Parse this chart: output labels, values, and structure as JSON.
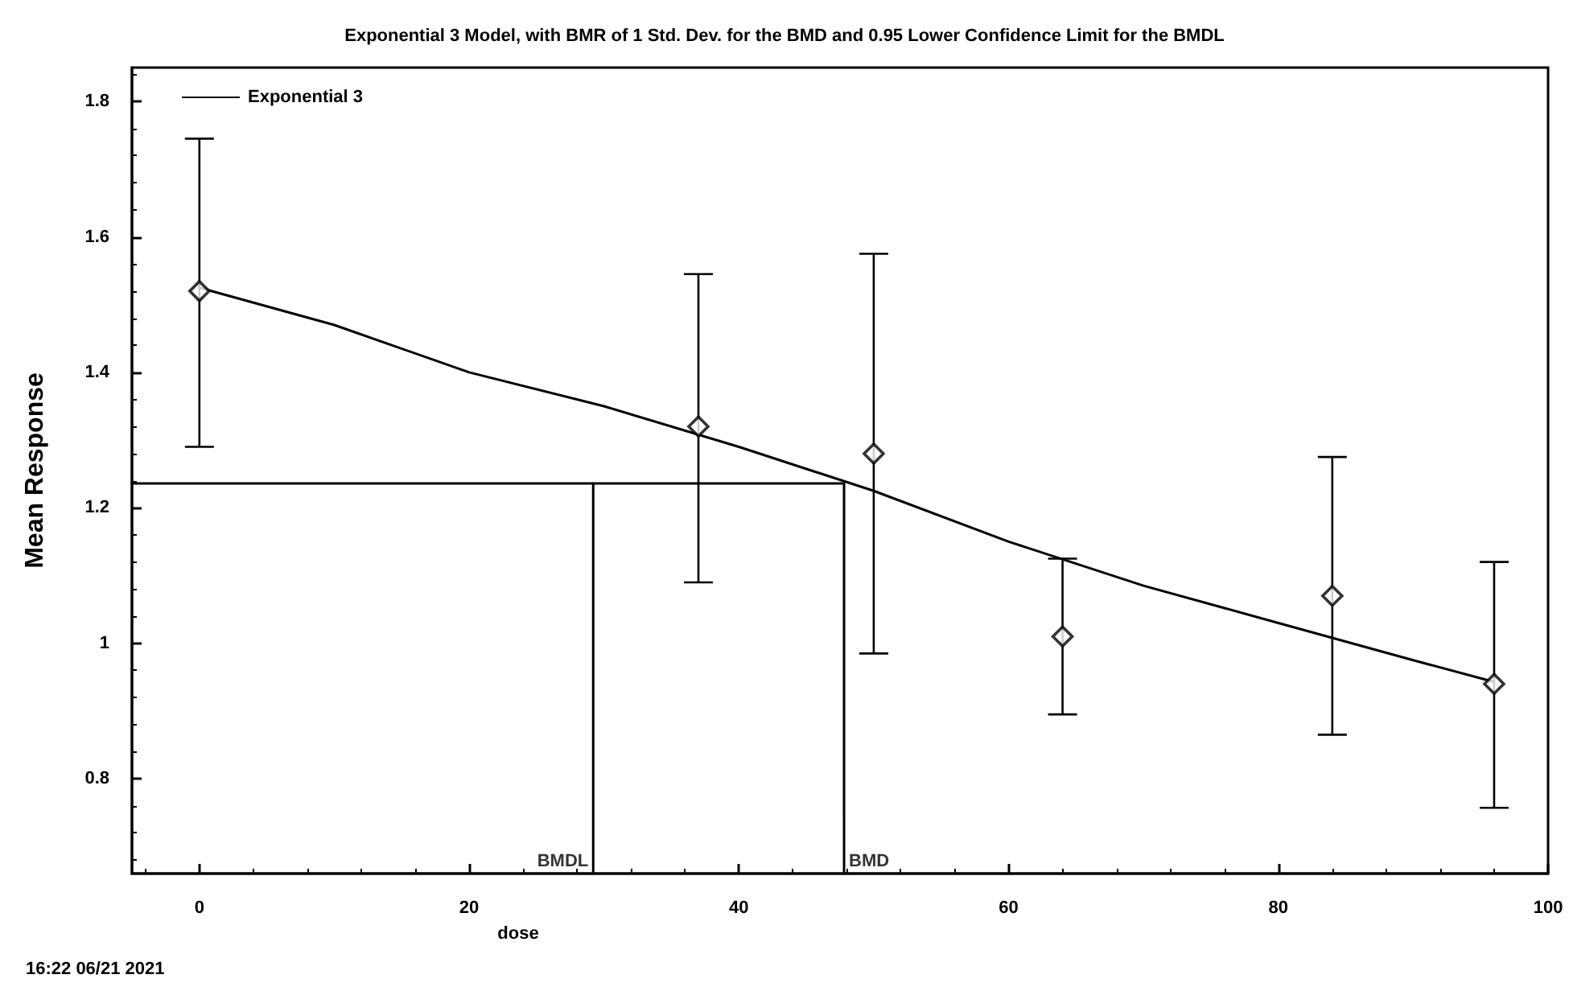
{
  "chart_data": {
    "type": "scatter",
    "title": "Exponential 3 Model, with BMR of 1 Std. Dev. for the BMD and 0.95 Lower Confidence Limit for the BMDL",
    "xlabel": "dose",
    "ylabel": "Mean Response",
    "xlim": [
      -5,
      100
    ],
    "xticks": [
      0,
      20,
      40,
      60,
      80,
      100
    ],
    "ylim": [
      0.66,
      1.85
    ],
    "yticks": [
      0.8,
      1,
      1.2,
      1.4,
      1.6,
      1.8
    ],
    "grid": false,
    "legend": "top left",
    "marker": "diamond",
    "series": [
      {
        "color": "#000000",
        "x": [
          0,
          37,
          50,
          64,
          84,
          96
        ],
        "values": [
          1.52,
          1.32,
          1.28,
          1.01,
          1.07,
          0.94
        ],
        "errors": [
          [
            1.29,
            1.745
          ],
          [
            1.09,
            1.545
          ],
          [
            0.985,
            1.575
          ],
          [
            0.895,
            1.125
          ],
          [
            0.865,
            1.275
          ],
          [
            0.757,
            1.12
          ]
        ]
      },
      {
        "type": "line",
        "name": "Exponential 3",
        "color": "#000000",
        "marker": "none",
        "line_style": "solid",
        "x": [
          0,
          10,
          20,
          30,
          40,
          50,
          60,
          70,
          80,
          90,
          96
        ],
        "values": [
          1.525,
          1.47,
          1.4,
          1.35,
          1.29,
          1.225,
          1.15,
          1.085,
          1.03,
          0.975,
          0.943
        ]
      },
      {
        "type": "line",
        "color": "#000000",
        "marker": "none",
        "line_style": "solid",
        "x": [
          -5,
          47.8,
          47.8
        ],
        "values": [
          1.236,
          1.236,
          0.66
        ]
      },
      {
        "type": "line",
        "color": "#000000",
        "marker": "none",
        "line_style": "solid",
        "x": [
          29.2,
          29.2
        ],
        "values": [
          1.236,
          0.66
        ]
      }
    ],
    "annotations": [
      {
        "text": "BMDL",
        "x": 29.2,
        "y": 0.66
      },
      {
        "text": "BMD",
        "x": 47.8,
        "y": 0.66
      },
      "16:22 06/21 2021"
    ]
  }
}
